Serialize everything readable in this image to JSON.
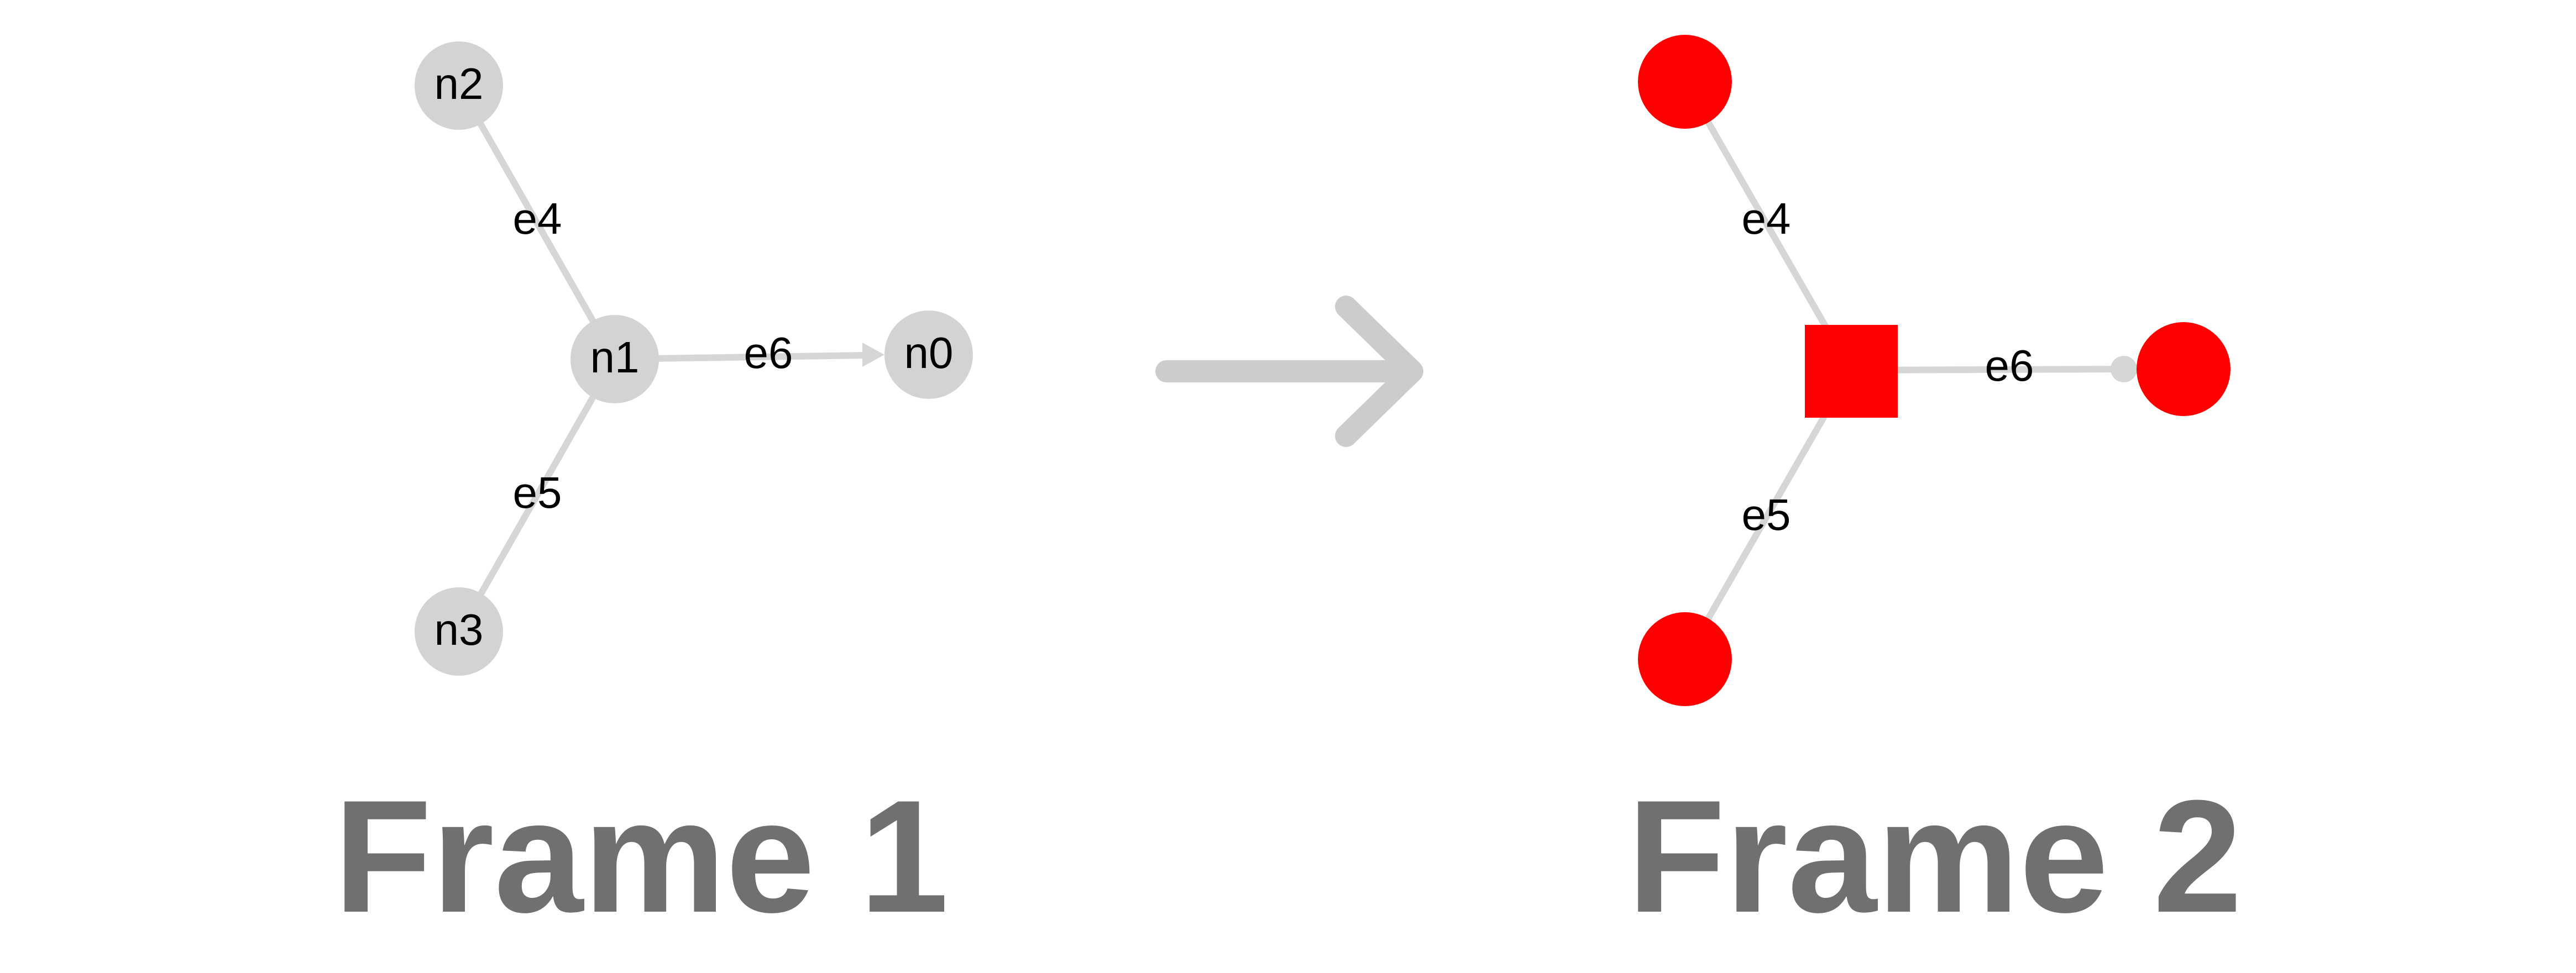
{
  "colors": {
    "edge": "#d6d6d6",
    "node_gray": "#d3d3d3",
    "node_red": "#ff0000",
    "transition_arrow": "#cccccc",
    "title": "#707070",
    "label": "#000000"
  },
  "frame1": {
    "title": "Frame 1",
    "nodes": {
      "n0": "n0",
      "n1": "n1",
      "n2": "n2",
      "n3": "n3"
    },
    "edges": {
      "e4": "e4",
      "e5": "e5",
      "e6": "e6"
    }
  },
  "frame2": {
    "title": "Frame 2",
    "edges": {
      "e4": "e4",
      "e5": "e5",
      "e6": "e6"
    }
  }
}
